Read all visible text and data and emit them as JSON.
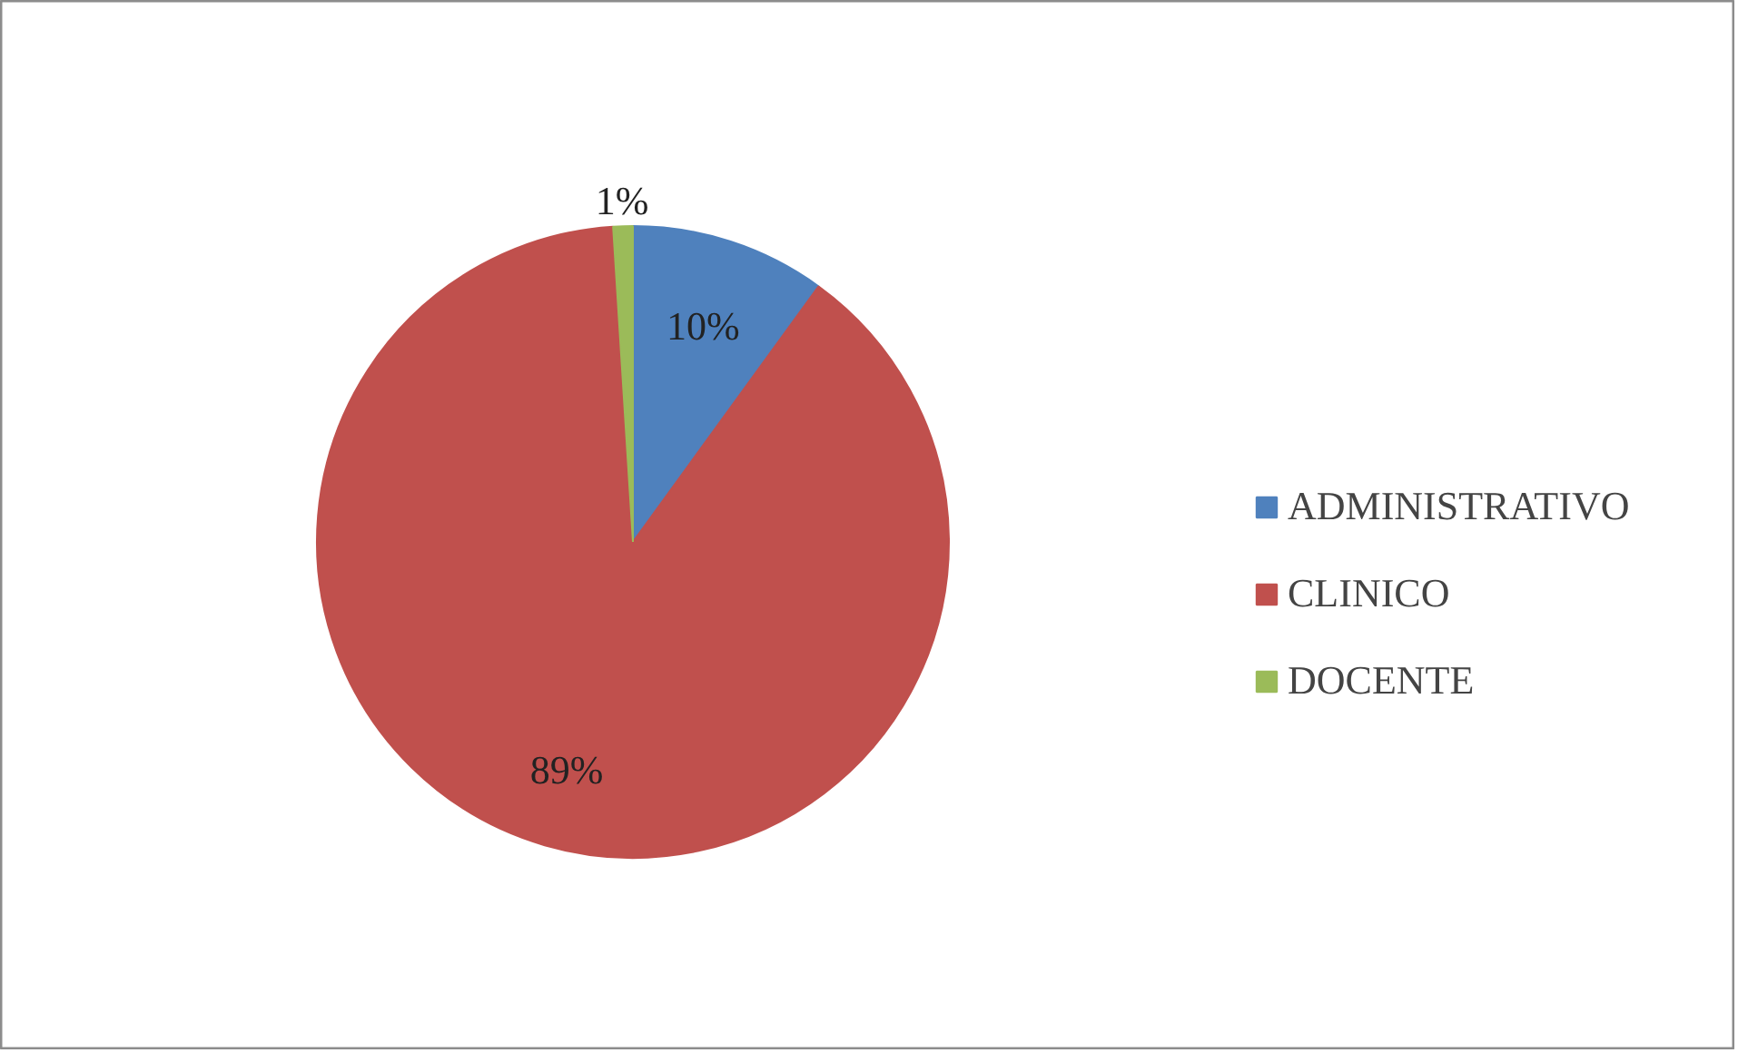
{
  "chart_data": {
    "type": "pie",
    "categories": [
      "ADMINISTRATIVO",
      "CLINICO",
      "DOCENTE"
    ],
    "values": [
      10,
      89,
      1
    ],
    "colors": [
      "#4f81bd",
      "#c0504d",
      "#9bbb59"
    ],
    "value_labels": [
      "10%",
      "89%",
      "1%"
    ],
    "legend": "right"
  }
}
